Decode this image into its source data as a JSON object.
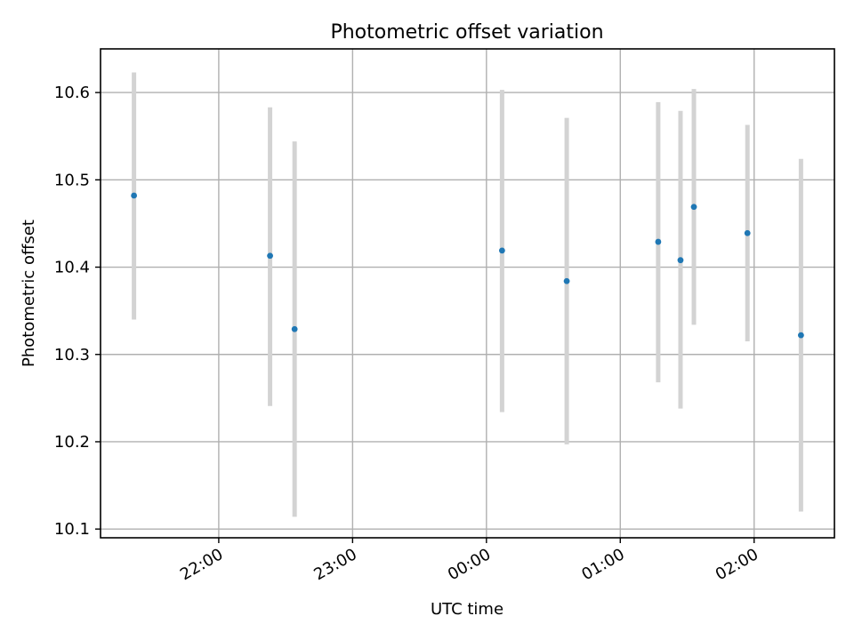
{
  "chart_data": {
    "type": "scatter",
    "title": "Photometric offset variation",
    "xlabel": "UTC time",
    "ylabel": "Photometric offset",
    "x_axis_type": "time",
    "xlim": [
      "21:07",
      "02:36"
    ],
    "ylim": [
      10.09,
      10.65
    ],
    "x_ticks": [
      "22:00",
      "23:00",
      "00:00",
      "01:00",
      "02:00"
    ],
    "y_ticks": [
      "10.1",
      "10.2",
      "10.3",
      "10.4",
      "10.5",
      "10.6"
    ],
    "grid": true,
    "marker_color": "#1f77b4",
    "errorbar_color": "#d3d3d3",
    "points": [
      {
        "x": "21:22",
        "y": 10.482,
        "err_low": 10.34,
        "err_high": 10.623
      },
      {
        "x": "22:23",
        "y": 10.413,
        "err_low": 10.241,
        "err_high": 10.583
      },
      {
        "x": "22:34",
        "y": 10.329,
        "err_low": 10.114,
        "err_high": 10.544
      },
      {
        "x": "00:07",
        "y": 10.419,
        "err_low": 10.234,
        "err_high": 10.603
      },
      {
        "x": "00:36",
        "y": 10.384,
        "err_low": 10.197,
        "err_high": 10.571
      },
      {
        "x": "01:17",
        "y": 10.429,
        "err_low": 10.268,
        "err_high": 10.589
      },
      {
        "x": "01:27",
        "y": 10.408,
        "err_low": 10.238,
        "err_high": 10.579
      },
      {
        "x": "01:33",
        "y": 10.469,
        "err_low": 10.334,
        "err_high": 10.604
      },
      {
        "x": "01:57",
        "y": 10.439,
        "err_low": 10.315,
        "err_high": 10.563
      },
      {
        "x": "02:21",
        "y": 10.322,
        "err_low": 10.12,
        "err_high": 10.524
      }
    ]
  }
}
